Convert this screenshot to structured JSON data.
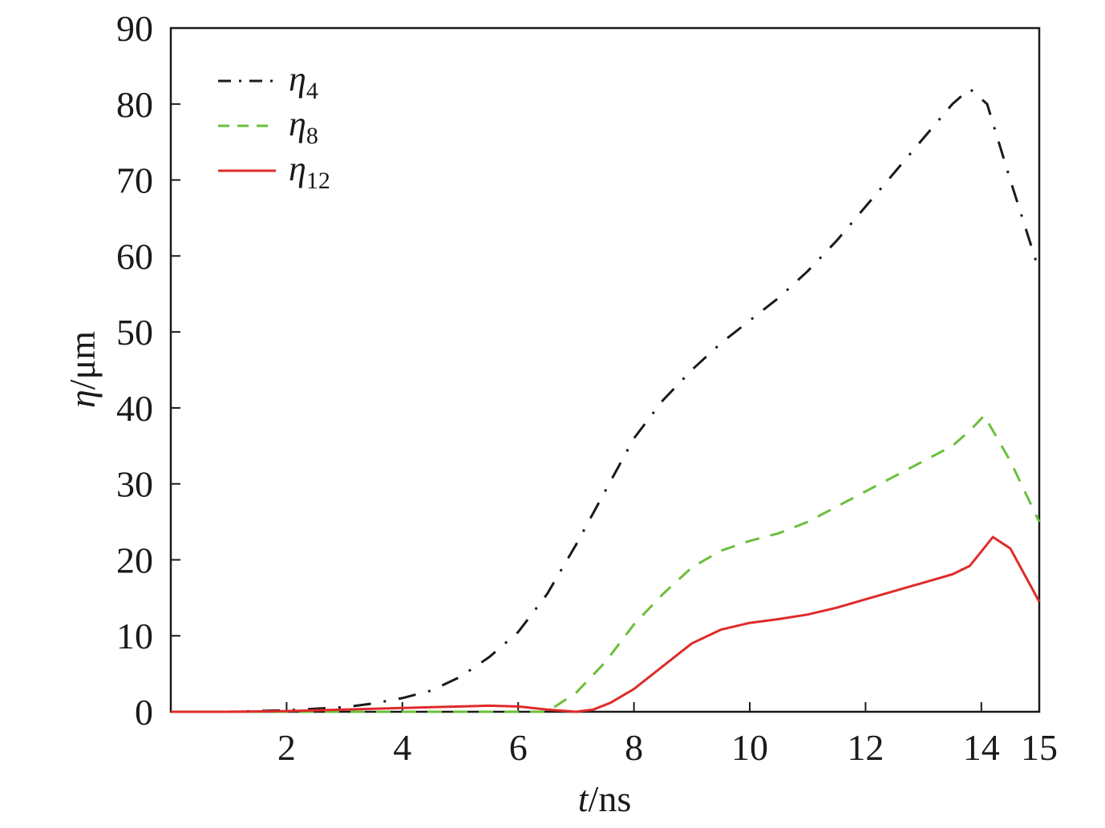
{
  "chart_data": {
    "type": "line",
    "xlabel": {
      "var": "t",
      "unit": "/ns"
    },
    "ylabel": {
      "var": "η",
      "unit": "/μm"
    },
    "xlim": [
      0,
      15
    ],
    "ylim": [
      0,
      90
    ],
    "xticks": [
      2,
      4,
      6,
      8,
      10,
      12,
      14,
      15
    ],
    "yticks": [
      0,
      10,
      20,
      30,
      40,
      50,
      60,
      70,
      80,
      90
    ],
    "grid": false,
    "legend_position": "top-left",
    "series": [
      {
        "name": "η",
        "subscript": "4",
        "color": "#1a1a1a",
        "dash": "dashdot",
        "x": [
          0,
          1,
          2,
          3,
          3.5,
          4,
          4.5,
          5,
          5.5,
          6,
          6.5,
          7,
          7.5,
          8,
          8.5,
          9,
          9.5,
          10,
          10.5,
          11,
          11.5,
          12,
          12.5,
          13,
          13.5,
          13.8,
          14.1,
          14.5,
          15
        ],
        "values": [
          0,
          0,
          0.2,
          0.6,
          1.1,
          1.8,
          2.8,
          4.6,
          7.2,
          10.5,
          15.5,
          22,
          29,
          36,
          41,
          45,
          48.5,
          51.5,
          54.5,
          58,
          62,
          66.5,
          71,
          75.5,
          80,
          82,
          80,
          70,
          58
        ]
      },
      {
        "name": "η",
        "subscript": "8",
        "color": "#6abf3a",
        "dash": "dashed",
        "x": [
          0,
          2,
          3,
          4,
          5,
          6,
          6.5,
          7,
          7.5,
          8,
          8.5,
          9,
          9.5,
          10,
          10.5,
          11,
          11.5,
          12,
          12.5,
          13,
          13.5,
          13.8,
          14.05,
          14.5,
          15
        ],
        "values": [
          0,
          0,
          0,
          0,
          0,
          0,
          0,
          2.5,
          6.5,
          11.5,
          15.5,
          19,
          21.2,
          22.5,
          23.5,
          25,
          27,
          29,
          31,
          33,
          35,
          37,
          39,
          33,
          25
        ]
      },
      {
        "name": "η",
        "subscript": "12",
        "color": "#e02a2a",
        "dash": "solid",
        "x": [
          0,
          1,
          2,
          3,
          4,
          4.5,
          5,
          5.5,
          6,
          6.5,
          7,
          7.3,
          7.6,
          8,
          8.5,
          9,
          9.5,
          10,
          10.5,
          11,
          11.5,
          12,
          12.5,
          13,
          13.5,
          13.8,
          14.2,
          14.5,
          15
        ],
        "values": [
          0,
          0,
          0.1,
          0.3,
          0.5,
          0.6,
          0.7,
          0.8,
          0.7,
          0.3,
          0,
          0.3,
          1.2,
          3,
          6,
          9,
          10.8,
          11.7,
          12.2,
          12.8,
          13.7,
          14.8,
          15.9,
          17,
          18.1,
          19.2,
          23,
          21.5,
          14.5
        ]
      }
    ]
  }
}
